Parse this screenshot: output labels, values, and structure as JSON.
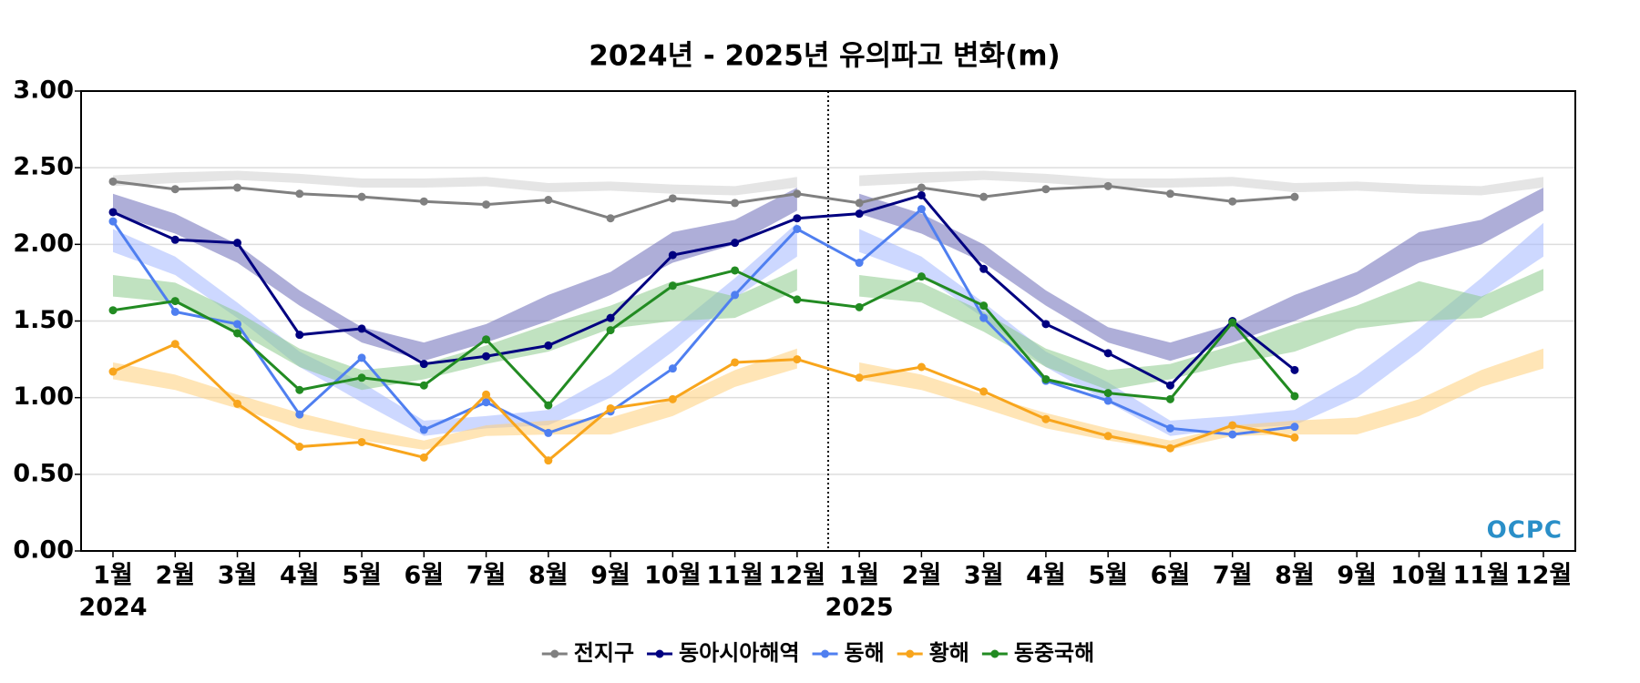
{
  "chart_data": {
    "type": "line",
    "title": "2024년 - 2025년 유의파고 변화(m)",
    "categories": [
      "1월",
      "2월",
      "3월",
      "4월",
      "5월",
      "6월",
      "7월",
      "8월",
      "9월",
      "10월",
      "11월",
      "12월",
      "1월",
      "2월",
      "3월",
      "4월",
      "5월",
      "6월",
      "7월",
      "8월",
      "9월",
      "10월",
      "11월",
      "12월"
    ],
    "years": [
      "2024",
      "2025"
    ],
    "ylim": [
      0,
      3
    ],
    "yticks": [
      {
        "value": 0,
        "label": "0.00"
      },
      {
        "value": 0.5,
        "label": "0.50"
      },
      {
        "value": 1,
        "label": "1.00"
      },
      {
        "value": 1.5,
        "label": "1.50"
      },
      {
        "value": 2,
        "label": "2.00"
      },
      {
        "value": 2.5,
        "label": "2.50"
      },
      {
        "value": 3,
        "label": "3.00"
      }
    ],
    "grid": true,
    "legend": "bottom",
    "logo": "OCPC",
    "series": [
      {
        "name": "전지구",
        "color": "#808080",
        "values": [
          2.41,
          2.36,
          2.37,
          2.33,
          2.31,
          2.28,
          2.26,
          2.29,
          2.17,
          2.3,
          2.27,
          2.33,
          2.27,
          2.37,
          2.31,
          2.36,
          2.38,
          2.33,
          2.28,
          2.31,
          null,
          null,
          null,
          null
        ]
      },
      {
        "name": "동아시아해역",
        "color": "#000080",
        "values": [
          2.21,
          2.03,
          2.01,
          1.41,
          1.45,
          1.22,
          1.27,
          1.34,
          1.52,
          1.93,
          2.01,
          2.17,
          2.2,
          2.32,
          1.84,
          1.48,
          1.29,
          1.08,
          1.5,
          1.18,
          null,
          null,
          null,
          null
        ]
      },
      {
        "name": "동해",
        "color": "#4f7ff0",
        "values": [
          2.15,
          1.56,
          1.48,
          0.89,
          1.26,
          0.79,
          0.97,
          0.77,
          0.91,
          1.19,
          1.67,
          2.1,
          1.88,
          2.23,
          1.52,
          1.11,
          0.98,
          0.8,
          0.76,
          0.81,
          null,
          null,
          null,
          null
        ]
      },
      {
        "name": "황해",
        "color": "#f8a51c",
        "values": [
          1.17,
          1.35,
          0.96,
          0.68,
          0.71,
          0.61,
          1.02,
          0.59,
          0.93,
          0.99,
          1.23,
          1.25,
          1.13,
          1.2,
          1.04,
          0.86,
          0.75,
          0.67,
          0.82,
          0.74,
          null,
          null,
          null,
          null
        ]
      },
      {
        "name": "동중국해",
        "color": "#228b22",
        "values": [
          1.57,
          1.63,
          1.42,
          1.05,
          1.13,
          1.08,
          1.38,
          0.95,
          1.44,
          1.73,
          1.83,
          1.64,
          1.59,
          1.79,
          1.6,
          1.12,
          1.03,
          0.99,
          1.49,
          1.01,
          null,
          null,
          null,
          null
        ]
      }
    ],
    "bands": [
      {
        "color": "#d0d0d0",
        "lower": [
          2.38,
          2.4,
          2.42,
          2.4,
          2.37,
          2.37,
          2.38,
          2.34,
          2.35,
          2.33,
          2.32,
          2.37
        ],
        "upper": [
          2.45,
          2.47,
          2.48,
          2.46,
          2.43,
          2.43,
          2.44,
          2.4,
          2.41,
          2.39,
          2.38,
          2.44
        ]
      },
      {
        "color": "#6c6cb8",
        "lower": [
          2.2,
          2.07,
          1.88,
          1.6,
          1.36,
          1.24,
          1.36,
          1.5,
          1.67,
          1.88,
          2.0,
          2.22
        ],
        "upper": [
          2.33,
          2.2,
          2.0,
          1.7,
          1.46,
          1.36,
          1.48,
          1.67,
          1.82,
          2.08,
          2.16,
          2.37
        ]
      },
      {
        "color": "#a4b8ff",
        "lower": [
          1.95,
          1.8,
          1.52,
          1.2,
          0.97,
          0.75,
          0.8,
          0.82,
          1.0,
          1.3,
          1.65,
          1.92
        ],
        "upper": [
          2.1,
          1.92,
          1.62,
          1.3,
          1.1,
          0.85,
          0.88,
          0.92,
          1.15,
          1.45,
          1.78,
          2.14
        ]
      },
      {
        "color": "#ffd07a",
        "lower": [
          1.12,
          1.05,
          0.93,
          0.8,
          0.72,
          0.66,
          0.75,
          0.76,
          0.76,
          0.88,
          1.07,
          1.19
        ],
        "upper": [
          1.23,
          1.15,
          1.02,
          0.9,
          0.8,
          0.72,
          0.82,
          0.85,
          0.87,
          0.99,
          1.18,
          1.32
        ]
      },
      {
        "color": "#8ccb8c",
        "lower": [
          1.66,
          1.62,
          1.43,
          1.2,
          1.05,
          1.12,
          1.22,
          1.3,
          1.45,
          1.5,
          1.52,
          1.7
        ],
        "upper": [
          1.8,
          1.75,
          1.56,
          1.32,
          1.18,
          1.22,
          1.34,
          1.48,
          1.6,
          1.76,
          1.66,
          1.84
        ]
      }
    ]
  }
}
